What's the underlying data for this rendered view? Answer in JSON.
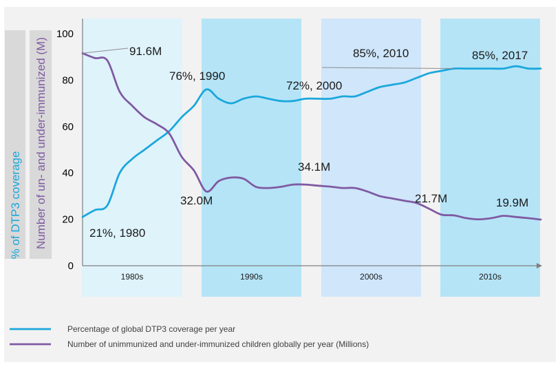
{
  "chart_data": {
    "type": "line",
    "xlim": [
      1980,
      2017
    ],
    "ylim": [
      0,
      100
    ],
    "yticks": [
      0,
      20,
      40,
      60,
      80,
      100
    ],
    "ylabel_primary": "% of DTP3 coverage",
    "ylabel_secondary": "Number of un- and under-immunized (M)",
    "decades": [
      {
        "label": "1980s",
        "start": 1980,
        "end": 1989
      },
      {
        "label": "1990s",
        "start": 1990,
        "end": 1999
      },
      {
        "label": "2000s",
        "start": 2000,
        "end": 2009
      },
      {
        "label": "2010s",
        "start": 2010,
        "end": 2019
      }
    ],
    "series": [
      {
        "name": "Percentage of global DTP3 coverage per year",
        "color": "#1aa7dc",
        "x": [
          1980,
          1981,
          1982,
          1983,
          1984,
          1985,
          1986,
          1987,
          1988,
          1989,
          1990,
          1991,
          1992,
          1993,
          1994,
          1995,
          1996,
          1997,
          1998,
          1999,
          2000,
          2001,
          2002,
          2003,
          2004,
          2005,
          2006,
          2007,
          2008,
          2009,
          2010,
          2011,
          2012,
          2013,
          2014,
          2015,
          2016,
          2017
        ],
        "values": [
          21,
          24,
          26,
          40,
          46,
          50,
          54,
          58,
          64,
          69,
          76,
          72,
          70,
          72,
          73,
          72,
          71,
          71,
          72,
          72,
          72,
          73,
          73,
          75,
          77,
          78,
          79,
          81,
          83,
          84,
          85,
          85,
          85,
          85,
          85,
          86,
          85,
          85
        ]
      },
      {
        "name": "Number of unimmunized and under-immunized children globally per year (Millions)",
        "color": "#7f5aa2",
        "x": [
          1980,
          1981,
          1982,
          1983,
          1984,
          1985,
          1986,
          1987,
          1988,
          1989,
          1990,
          1991,
          1992,
          1993,
          1994,
          1995,
          1996,
          1997,
          1998,
          1999,
          2000,
          2001,
          2002,
          2003,
          2004,
          2005,
          2006,
          2007,
          2008,
          2009,
          2010,
          2011,
          2012,
          2013,
          2014,
          2015,
          2016,
          2017
        ],
        "values": [
          91.6,
          89.5,
          88.5,
          75,
          69,
          64,
          61,
          57,
          47,
          41,
          32,
          36.5,
          38,
          37.5,
          34,
          33.5,
          34,
          35,
          35,
          34.5,
          34.1,
          33.5,
          33.5,
          32,
          30,
          29,
          28,
          27,
          24.5,
          22,
          21.7,
          20.5,
          20,
          20.5,
          21.5,
          21,
          20.5,
          19.9
        ]
      }
    ],
    "annotations": [
      {
        "text": "91.6M",
        "series": 1,
        "x": 1980
      },
      {
        "text": "76%, 1990",
        "series": 0,
        "x": 1990
      },
      {
        "text": "72%, 2000",
        "series": 0,
        "x": 2000
      },
      {
        "text": "85%, 2010",
        "series": 0,
        "x": 2010
      },
      {
        "text": "85%, 2017",
        "series": 0,
        "x": 2017
      },
      {
        "text": "21%, 1980",
        "series": 0,
        "x": 1980
      },
      {
        "text": "32.0M",
        "series": 1,
        "x": 1990
      },
      {
        "text": "34.1M",
        "series": 1,
        "x": 2000
      },
      {
        "text": "21.7M",
        "series": 1,
        "x": 2010
      },
      {
        "text": "19.9M",
        "series": 1,
        "x": 2017
      }
    ],
    "colors": {
      "band_light": "#dff3fb",
      "band_mid": "#b5e4f7",
      "band_pale": "#cfe6fb",
      "background": "#f2f2f2",
      "axis": "#7f7f7f"
    }
  }
}
